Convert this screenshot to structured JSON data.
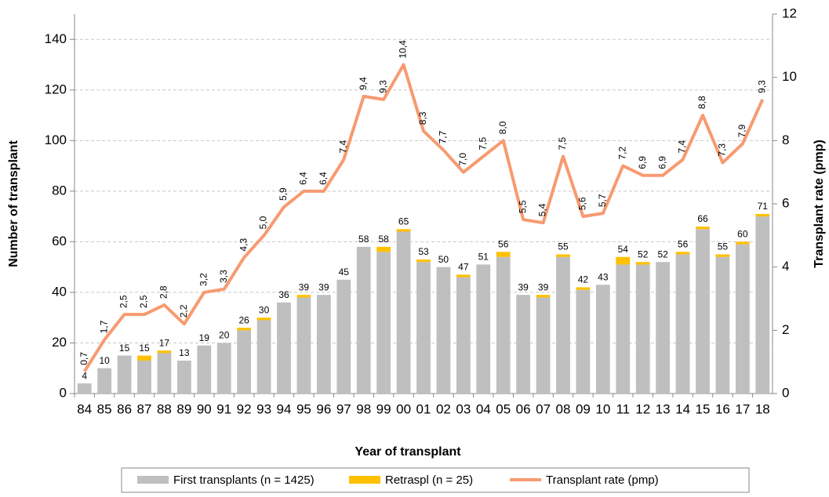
{
  "chart_data": {
    "type": "bar-line",
    "x_label": "Year of transplant",
    "y_label": "Number of transplant",
    "y2_label": "Transplant rate (pmp)",
    "categories": [
      "84",
      "85",
      "86",
      "87",
      "88",
      "89",
      "90",
      "91",
      "92",
      "93",
      "94",
      "95",
      "96",
      "97",
      "98",
      "99",
      "00",
      "01",
      "02",
      "03",
      "04",
      "05",
      "06",
      "07",
      "08",
      "09",
      "10",
      "11",
      "12",
      "13",
      "14",
      "15",
      "16",
      "17",
      "18"
    ],
    "series": [
      {
        "name": "First transplants (n = 1425)",
        "type": "bar",
        "color": "#bfbfbf",
        "values": [
          4,
          10,
          15,
          13,
          16,
          13,
          19,
          20,
          25,
          29,
          36,
          38,
          39,
          45,
          58,
          56,
          64,
          52,
          50,
          46,
          51,
          54,
          39,
          38,
          54,
          41,
          43,
          51,
          51,
          52,
          55,
          65,
          54,
          59,
          70
        ]
      },
      {
        "name": "Retraspl (n = 25)",
        "type": "bar",
        "color": "#ffc000",
        "values": [
          0,
          0,
          0,
          2,
          1,
          0,
          0,
          0,
          1,
          1,
          0,
          1,
          0,
          0,
          0,
          2,
          1,
          1,
          0,
          1,
          0,
          2,
          0,
          1,
          1,
          1,
          0,
          3,
          1,
          0,
          1,
          1,
          1,
          1,
          1
        ]
      },
      {
        "name": "Transplant rate (pmp)",
        "type": "line",
        "axis": "y2",
        "color": "#f79a70",
        "values": [
          0.7,
          1.7,
          2.5,
          2.5,
          2.8,
          2.2,
          3.2,
          3.3,
          4.3,
          5.0,
          5.9,
          6.4,
          6.4,
          7.4,
          9.4,
          9.3,
          10.4,
          8.3,
          7.7,
          7.0,
          7.5,
          8.0,
          5.5,
          5.4,
          7.5,
          5.6,
          5.7,
          7.2,
          6.9,
          6.9,
          7.4,
          8.8,
          7.3,
          7.9,
          9.3
        ],
        "value_labels": [
          "0,7",
          "1,7",
          "2,5",
          "2,5",
          "2,8",
          "2,2",
          "3,2",
          "3,3",
          "4,3",
          "5,0",
          "5,9",
          "6,4",
          "6,4",
          "7,4",
          "9,4",
          "9,3",
          "10,4",
          "8,3",
          "7,7",
          "7,0",
          "7,5",
          "8,0",
          "5,5",
          "5,4",
          "7,5",
          "5,6",
          "5,7",
          "7,2",
          "6,9",
          "6,9",
          "7,4",
          "8,8",
          "7,3",
          "7,9",
          "9,3"
        ]
      }
    ],
    "totals": [
      4,
      10,
      15,
      15,
      17,
      13,
      19,
      20,
      26,
      30,
      36,
      39,
      39,
      45,
      58,
      58,
      65,
      53,
      50,
      47,
      51,
      56,
      39,
      39,
      55,
      42,
      43,
      54,
      52,
      52,
      56,
      66,
      55,
      60,
      71
    ],
    "ylim": [
      0,
      150
    ],
    "yticks": [
      0,
      20,
      40,
      60,
      80,
      100,
      120,
      140
    ],
    "y2lim": [
      0,
      12
    ],
    "y2ticks": [
      0,
      2,
      4,
      6,
      8,
      10,
      12
    ],
    "grid": true
  }
}
